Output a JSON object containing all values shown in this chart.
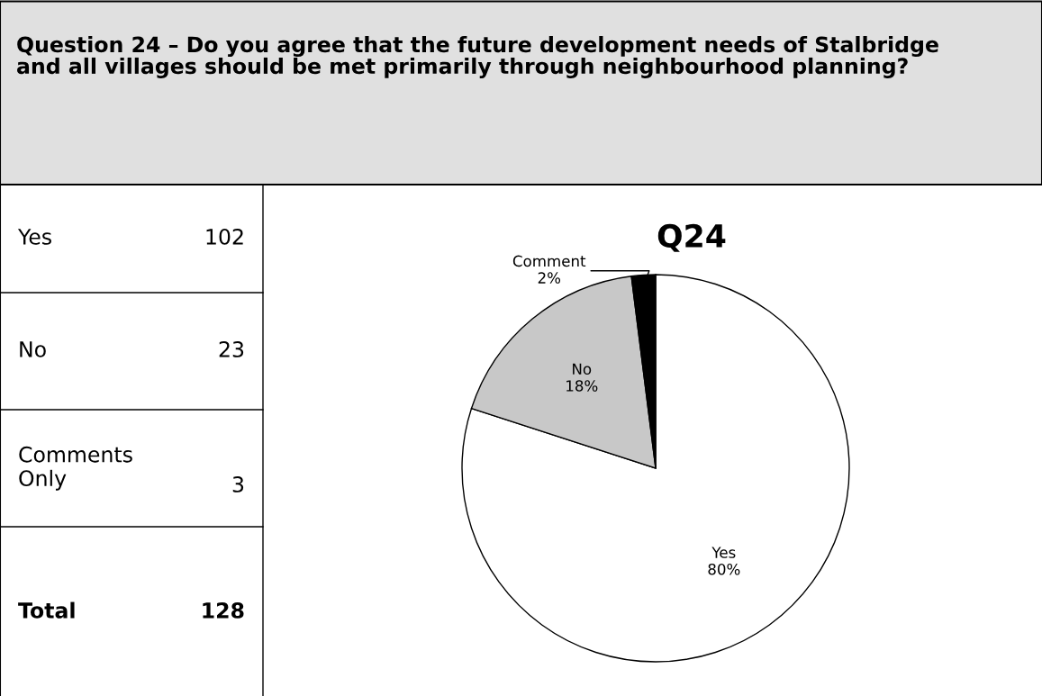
{
  "chart_data": {
    "type": "pie",
    "title": "Q24",
    "subtitle": "Question 24 – Do you agree that the future development needs of Stalbridge and all villages should be met primarily through neighbourhood planning?",
    "categories": [
      "Yes",
      "No",
      "Comment"
    ],
    "values": [
      80,
      18,
      2
    ],
    "value_labels": [
      "80%",
      "18%",
      "2%"
    ],
    "colors": [
      "#ffffff",
      "#c8c8c8",
      "#000000"
    ],
    "annotations": [
      "Yes",
      "102",
      "No",
      "23",
      "Comments Only",
      "3",
      "Total",
      "128"
    ]
  }
}
